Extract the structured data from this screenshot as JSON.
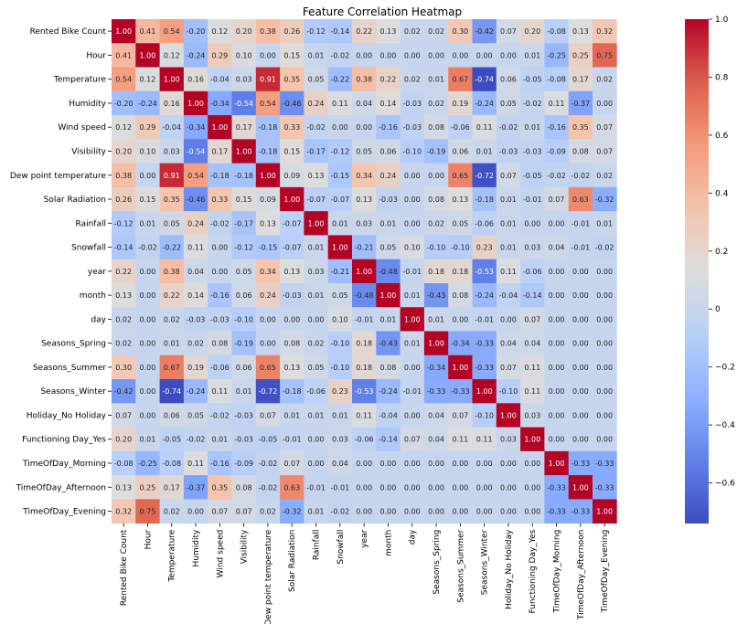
{
  "chart_data": {
    "type": "heatmap",
    "title": "Feature Correlation Heatmap",
    "colormap": "coolwarm",
    "colors": {
      "low": "#3b4cc0",
      "mid": "#dddddd",
      "high": "#b40426",
      "grid_line": "#ffffff"
    },
    "labels": [
      "Rented Bike Count",
      "Hour",
      "Temperature",
      "Humidity",
      "Wind speed",
      "Visibility",
      "Dew point temperature",
      "Solar Radiation",
      "Rainfall",
      "Snowfall",
      "year",
      "month",
      "day",
      "Seasons_Spring",
      "Seasons_Summer",
      "Seasons_Winter",
      "Holiday_No Holiday",
      "Functioning Day_Yes",
      "TimeOfDay_Morning",
      "TimeOfDay_Afternoon",
      "TimeOfDay_Evening"
    ],
    "values": [
      [
        1.0,
        0.41,
        0.54,
        -0.2,
        0.12,
        0.2,
        0.38,
        0.26,
        -0.12,
        -0.14,
        0.22,
        0.13,
        0.02,
        0.02,
        0.3,
        -0.42,
        0.07,
        0.2,
        -0.08,
        0.13,
        0.32
      ],
      [
        0.41,
        1.0,
        0.12,
        -0.24,
        0.29,
        0.1,
        0.0,
        0.15,
        0.01,
        -0.02,
        0.0,
        0.0,
        0.0,
        -0.0,
        0.0,
        -0.0,
        0.0,
        0.01,
        -0.25,
        0.25,
        0.75
      ],
      [
        0.54,
        0.12,
        1.0,
        0.16,
        -0.04,
        0.03,
        0.91,
        0.35,
        0.05,
        -0.22,
        0.38,
        0.22,
        0.02,
        0.01,
        0.67,
        -0.74,
        0.06,
        -0.05,
        -0.08,
        0.17,
        0.02
      ],
      [
        -0.2,
        -0.24,
        0.16,
        1.0,
        -0.34,
        -0.54,
        0.54,
        -0.46,
        0.24,
        0.11,
        0.04,
        0.14,
        -0.03,
        0.02,
        0.19,
        -0.24,
        0.05,
        -0.02,
        0.11,
        -0.37,
        -0.0
      ],
      [
        0.12,
        0.29,
        -0.04,
        -0.34,
        1.0,
        0.17,
        -0.18,
        0.33,
        -0.02,
        -0.0,
        -0.0,
        -0.16,
        -0.03,
        0.08,
        -0.06,
        0.11,
        -0.02,
        0.01,
        -0.16,
        0.35,
        0.07
      ],
      [
        0.2,
        0.1,
        0.03,
        -0.54,
        0.17,
        1.0,
        -0.18,
        0.15,
        -0.17,
        -0.12,
        0.05,
        0.06,
        -0.1,
        -0.19,
        0.06,
        0.01,
        -0.03,
        -0.03,
        -0.09,
        0.08,
        0.07
      ],
      [
        0.38,
        0.0,
        0.91,
        0.54,
        -0.18,
        -0.18,
        1.0,
        0.09,
        0.13,
        -0.15,
        0.34,
        0.24,
        0.0,
        0.0,
        0.65,
        -0.72,
        0.07,
        -0.05,
        -0.02,
        -0.02,
        0.02
      ],
      [
        0.26,
        0.15,
        0.35,
        -0.46,
        0.33,
        0.15,
        0.09,
        1.0,
        -0.07,
        -0.07,
        0.13,
        -0.03,
        -0.0,
        0.08,
        0.13,
        -0.18,
        0.01,
        -0.01,
        0.07,
        0.63,
        -0.32
      ],
      [
        -0.12,
        0.01,
        0.05,
        0.24,
        -0.02,
        -0.17,
        0.13,
        -0.07,
        1.0,
        0.01,
        0.03,
        0.01,
        -0.0,
        0.02,
        0.05,
        -0.06,
        0.01,
        0.0,
        0.0,
        -0.01,
        0.01
      ],
      [
        -0.14,
        -0.02,
        -0.22,
        0.11,
        -0.0,
        -0.12,
        -0.15,
        -0.07,
        0.01,
        1.0,
        -0.21,
        0.05,
        0.1,
        -0.1,
        -0.1,
        0.23,
        0.01,
        0.03,
        0.04,
        -0.01,
        -0.02
      ],
      [
        0.22,
        0.0,
        0.38,
        0.04,
        -0.0,
        0.05,
        0.34,
        0.13,
        0.03,
        -0.21,
        1.0,
        -0.48,
        -0.01,
        0.18,
        0.18,
        -0.53,
        0.11,
        -0.06,
        -0.0,
        0.0,
        0.0
      ],
      [
        0.13,
        0.0,
        0.22,
        0.14,
        -0.16,
        0.06,
        0.24,
        -0.03,
        0.01,
        0.05,
        -0.48,
        1.0,
        0.01,
        -0.43,
        0.08,
        -0.24,
        -0.04,
        -0.14,
        0.0,
        0.0,
        -0.0
      ],
      [
        0.02,
        0.0,
        0.02,
        -0.03,
        -0.03,
        -0.1,
        0.0,
        -0.0,
        -0.0,
        0.1,
        -0.01,
        0.01,
        1.0,
        0.01,
        0.0,
        -0.01,
        0.0,
        0.07,
        0.0,
        0.0,
        0.0
      ],
      [
        0.02,
        -0.0,
        0.01,
        0.02,
        0.08,
        -0.19,
        0.0,
        0.08,
        0.02,
        -0.1,
        0.18,
        -0.43,
        0.01,
        1.0,
        -0.34,
        -0.33,
        0.04,
        0.04,
        -0.0,
        -0.0,
        0.0
      ],
      [
        0.3,
        0.0,
        0.67,
        0.19,
        -0.06,
        0.06,
        0.65,
        0.13,
        0.05,
        -0.1,
        0.18,
        0.08,
        0.0,
        -0.34,
        1.0,
        -0.33,
        0.07,
        0.11,
        0.0,
        0.0,
        -0.0
      ],
      [
        -0.42,
        -0.0,
        -0.74,
        -0.24,
        0.11,
        0.01,
        -0.72,
        -0.18,
        -0.06,
        0.23,
        -0.53,
        -0.24,
        -0.01,
        -0.33,
        -0.33,
        1.0,
        -0.1,
        0.11,
        -0.0,
        -0.0,
        0.0
      ],
      [
        0.07,
        0.0,
        0.06,
        0.05,
        -0.02,
        -0.03,
        0.07,
        0.01,
        0.01,
        0.01,
        0.11,
        -0.04,
        0.0,
        0.04,
        0.07,
        -0.1,
        1.0,
        0.03,
        -0.0,
        0.0,
        -0.0
      ],
      [
        0.2,
        0.01,
        -0.05,
        -0.02,
        0.01,
        -0.03,
        -0.05,
        -0.01,
        0.0,
        0.03,
        -0.06,
        -0.14,
        0.07,
        0.04,
        0.11,
        0.11,
        0.03,
        1.0,
        0.0,
        0.0,
        0.0
      ],
      [
        -0.08,
        -0.25,
        -0.08,
        0.11,
        -0.16,
        -0.09,
        -0.02,
        0.07,
        0.0,
        0.04,
        -0.0,
        0.0,
        0.0,
        -0.0,
        0.0,
        -0.0,
        -0.0,
        0.0,
        1.0,
        -0.33,
        -0.33
      ],
      [
        0.13,
        0.25,
        0.17,
        -0.37,
        0.35,
        0.08,
        -0.02,
        0.63,
        -0.01,
        -0.01,
        0.0,
        0.0,
        0.0,
        -0.0,
        0.0,
        -0.0,
        0.0,
        0.0,
        -0.33,
        1.0,
        -0.33
      ],
      [
        0.32,
        0.75,
        0.02,
        -0.0,
        0.07,
        0.07,
        0.02,
        -0.32,
        0.01,
        -0.02,
        0.0,
        -0.0,
        0.0,
        0.0,
        -0.0,
        0.0,
        -0.0,
        0.0,
        -0.33,
        -0.33,
        1.0
      ]
    ],
    "colorbar": {
      "vmin": -0.74,
      "vmax": 1.0,
      "ticks": [
        -0.6,
        -0.4,
        -0.2,
        0.0,
        0.2,
        0.4,
        0.6,
        0.8,
        1.0
      ],
      "tick_labels": [
        "−0.6",
        "−0.4",
        "−0.2",
        "0",
        "0.2",
        "0.4",
        "0.6",
        "0.8",
        "1.0"
      ]
    }
  }
}
